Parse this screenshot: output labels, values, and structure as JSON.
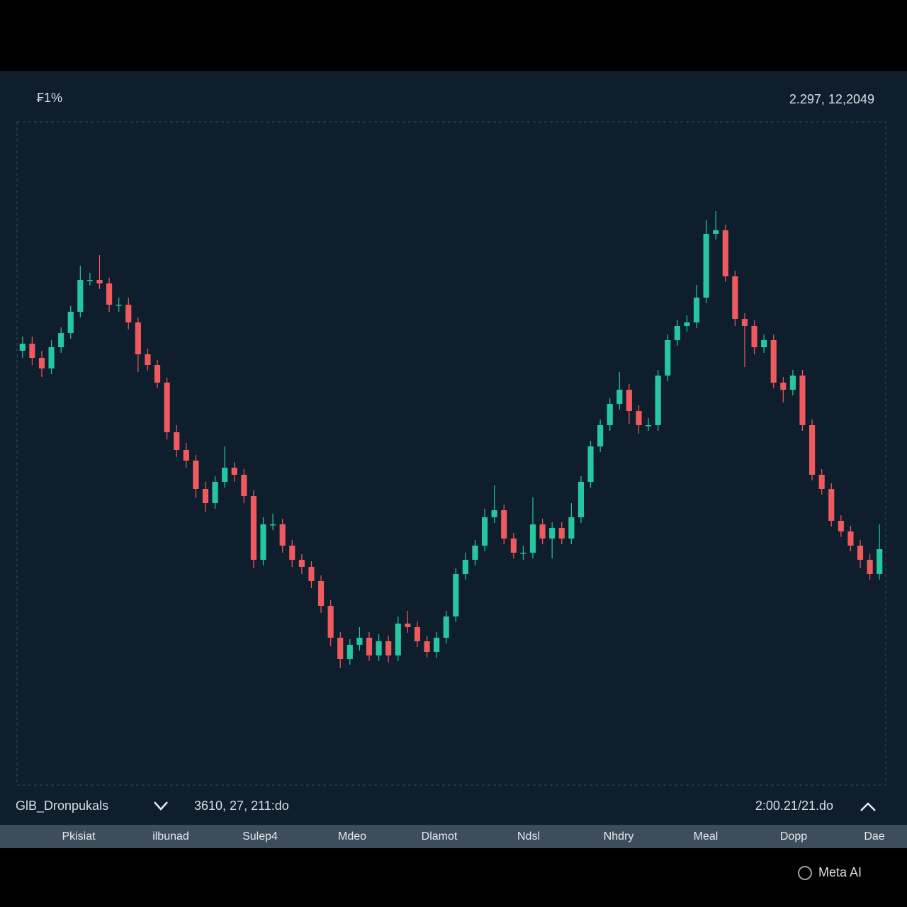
{
  "header": {
    "left": "₣1%",
    "right": "2.297, 12,2049"
  },
  "chart_data": {
    "type": "candlestick",
    "up_color": "#26c6a0",
    "down_color": "#ef5a5f",
    "ylim": [
      0,
      940
    ],
    "open": [
      613,
      623,
      603,
      588,
      618,
      638,
      668,
      713,
      713,
      708,
      678,
      678,
      653,
      608,
      593,
      568,
      498,
      473,
      458,
      418,
      398,
      428,
      448,
      438,
      408,
      318,
      368,
      368,
      338,
      318,
      308,
      288,
      253,
      208,
      178,
      198,
      208,
      183,
      203,
      183,
      228,
      223,
      203,
      188,
      208,
      238,
      298,
      318,
      338,
      378,
      388,
      348,
      328,
      328,
      368,
      348,
      363,
      348,
      378,
      428,
      478,
      508,
      538,
      558,
      528,
      508,
      508,
      578,
      628,
      648,
      653,
      688,
      778,
      783,
      718,
      658,
      648,
      618,
      628,
      568,
      558,
      578,
      508,
      438,
      418,
      373,
      358,
      338,
      318,
      298
    ],
    "high": [
      633,
      633,
      613,
      628,
      646,
      676,
      733,
      723,
      748,
      716,
      688,
      688,
      660,
      616,
      600,
      575,
      508,
      483,
      466,
      428,
      436,
      478,
      456,
      446,
      416,
      378,
      383,
      376,
      346,
      326,
      316,
      296,
      261,
      216,
      206,
      223,
      216,
      213,
      211,
      238,
      246,
      231,
      211,
      216,
      246,
      306,
      328,
      346,
      390,
      423,
      396,
      356,
      338,
      406,
      376,
      371,
      371,
      398,
      436,
      486,
      516,
      546,
      583,
      566,
      536,
      518,
      586,
      636,
      656,
      663,
      706,
      798,
      810,
      791,
      726,
      666,
      656,
      636,
      636,
      576,
      586,
      586,
      516,
      446,
      426,
      381,
      366,
      346,
      326,
      368
    ],
    "low": [
      603,
      593,
      576,
      580,
      610,
      630,
      660,
      705,
      700,
      668,
      668,
      643,
      583,
      585,
      560,
      488,
      463,
      448,
      405,
      386,
      390,
      420,
      428,
      398,
      306,
      310,
      360,
      328,
      308,
      298,
      278,
      243,
      196,
      165,
      170,
      190,
      175,
      175,
      173,
      175,
      215,
      195,
      180,
      180,
      200,
      230,
      290,
      310,
      330,
      370,
      340,
      320,
      318,
      320,
      340,
      320,
      340,
      340,
      370,
      420,
      470,
      500,
      530,
      510,
      496,
      500,
      500,
      570,
      620,
      640,
      645,
      680,
      770,
      710,
      648,
      590,
      608,
      610,
      560,
      540,
      550,
      500,
      430,
      410,
      365,
      350,
      330,
      306,
      290,
      290
    ],
    "close": [
      623,
      603,
      588,
      618,
      638,
      668,
      713,
      713,
      708,
      678,
      678,
      653,
      608,
      593,
      568,
      498,
      473,
      458,
      418,
      398,
      428,
      448,
      438,
      408,
      318,
      368,
      368,
      338,
      318,
      308,
      288,
      253,
      208,
      178,
      198,
      208,
      183,
      203,
      183,
      228,
      223,
      203,
      188,
      208,
      238,
      298,
      318,
      338,
      378,
      388,
      348,
      328,
      328,
      368,
      348,
      363,
      348,
      378,
      428,
      478,
      508,
      538,
      558,
      528,
      508,
      508,
      578,
      628,
      648,
      653,
      688,
      778,
      783,
      718,
      658,
      648,
      618,
      628,
      568,
      558,
      578,
      508,
      438,
      418,
      373,
      358,
      338,
      318,
      298,
      333
    ]
  },
  "footer": {
    "symbol": "GlB_Dronpukals",
    "left_value": "3610, 27, 211:do",
    "right_value": "2:00.21/21.do"
  },
  "tabs": [
    "Pkisiat",
    "ilbunad",
    "Sulep4",
    "Mdeo",
    "Dlamot",
    "Ndsl",
    "Nhdry",
    "Meal",
    "Dopp",
    "Dae"
  ],
  "watermark": "Meta AI"
}
